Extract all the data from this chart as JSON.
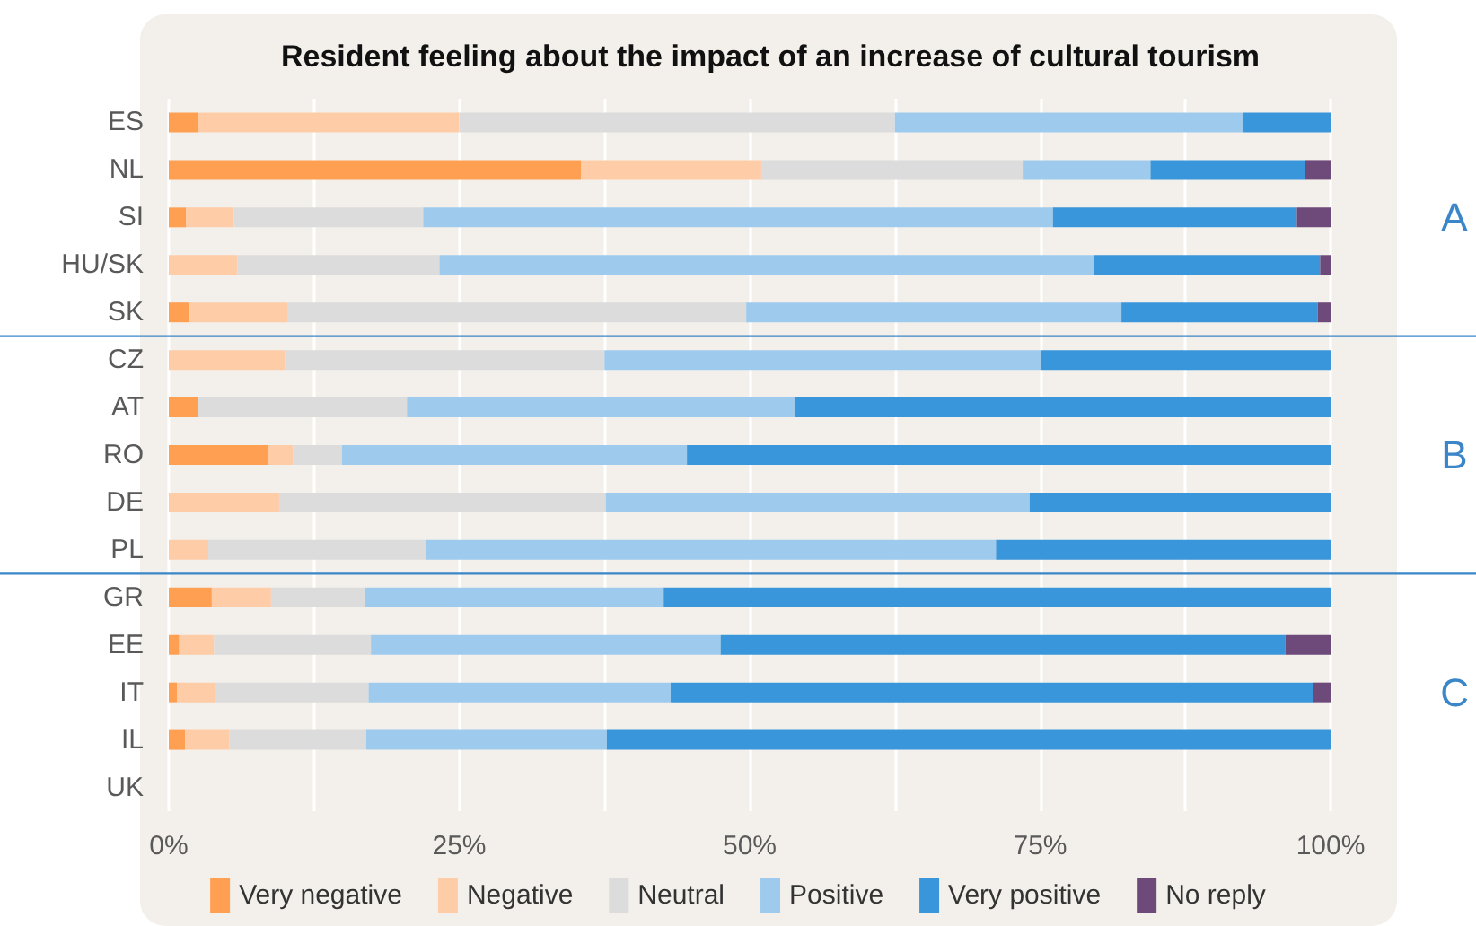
{
  "chart_data": {
    "type": "bar",
    "orientation": "horizontal",
    "stacked": true,
    "title": "Resident feeling about the impact of an increase of cultural tourism",
    "categories": [
      "ES",
      "NL",
      "SI",
      "HU/SK",
      "SK",
      "CZ",
      "AT",
      "RO",
      "DE",
      "PL",
      "GR",
      "EE",
      "IT",
      "IL",
      "UK"
    ],
    "series": [
      {
        "name": "Very negative",
        "color": "#ff9f52",
        "values": [
          2.5,
          35.5,
          1.5,
          0,
          1.8,
          0,
          2.5,
          8.5,
          0,
          0,
          3.7,
          0.9,
          0.7,
          1.4,
          null
        ]
      },
      {
        "name": "Negative",
        "color": "#ffcca8",
        "values": [
          22.5,
          15.5,
          4.1,
          5.9,
          8.4,
          10,
          0,
          2.2,
          9.5,
          3.4,
          5.1,
          3,
          3.3,
          3.8,
          null
        ]
      },
      {
        "name": "Neutral",
        "color": "#dcdcdc",
        "values": [
          37.5,
          22.5,
          16.3,
          17.4,
          39.5,
          27.5,
          18,
          4.2,
          28.1,
          18.7,
          8.1,
          13.5,
          13.2,
          11.8,
          null
        ]
      },
      {
        "name": "Positive",
        "color": "#9ecbed",
        "values": [
          30,
          11,
          54.2,
          56.3,
          32.3,
          37.6,
          33.4,
          29.7,
          36.5,
          49.1,
          25.7,
          30.1,
          26,
          20.7,
          null
        ]
      },
      {
        "name": "Very positive",
        "color": "#3a96db",
        "values": [
          7.5,
          13.3,
          21,
          19.5,
          16.9,
          24.9,
          46.1,
          55.4,
          25.9,
          28.8,
          57.4,
          48.6,
          55.3,
          62.3,
          null
        ]
      },
      {
        "name": "No reply",
        "color": "#6e4a7a",
        "values": [
          0,
          2.2,
          2.9,
          0.9,
          1.1,
          0,
          0,
          0,
          0,
          0,
          0,
          3.9,
          1.5,
          0,
          null
        ]
      }
    ],
    "xlim": [
      0,
      100
    ],
    "xticks": [
      {
        "value": 0,
        "label": "0%"
      },
      {
        "value": 12.5,
        "label": null
      },
      {
        "value": 25,
        "label": "25%"
      },
      {
        "value": 37.5,
        "label": null
      },
      {
        "value": 50,
        "label": "50%"
      },
      {
        "value": 62.5,
        "label": null
      },
      {
        "value": 75,
        "label": "75%"
      },
      {
        "value": 87.5,
        "label": null
      },
      {
        "value": 100,
        "label": "100%"
      }
    ],
    "grid": "x",
    "legend": "bottom",
    "annotations": [
      "A",
      "B",
      "C"
    ]
  }
}
